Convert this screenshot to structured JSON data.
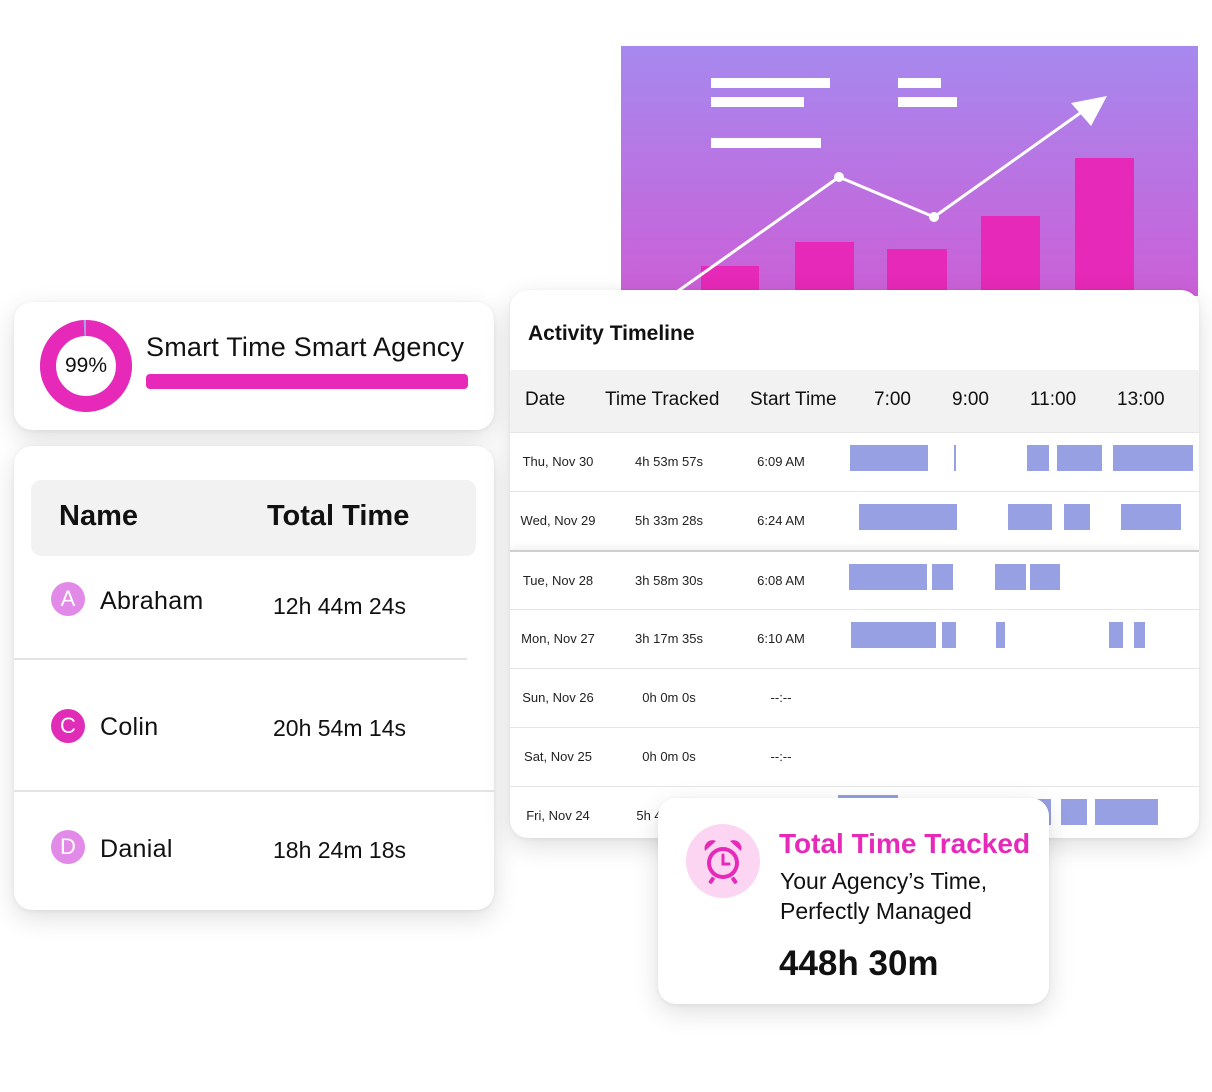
{
  "colors": {
    "accent": "#e629b8",
    "timeline_bar": "#97a0e3",
    "hero_top": "#a689ee",
    "hero_bottom": "#cb5fd7",
    "avatar_light": "#e28ae8",
    "avatar_dark": "#e02cb6"
  },
  "agency": {
    "percent_label": "99%",
    "completion": 0.99,
    "title": "Smart Time Smart Agency"
  },
  "people": {
    "header": {
      "name": "Name",
      "total": "Total Time"
    },
    "rows": [
      {
        "initial": "A",
        "name": "Abraham",
        "total": "12h 44m 24s",
        "avatar_color": "#e28ae8"
      },
      {
        "initial": "C",
        "name": "Colin",
        "total": "20h 54m 14s",
        "avatar_color": "#e02cb6"
      },
      {
        "initial": "D",
        "name": "Danial",
        "total": "18h 24m 18s",
        "avatar_color": "#e28ae8"
      }
    ]
  },
  "timeline": {
    "title": "Activity Timeline",
    "columns": {
      "date": "Date",
      "tracked": "Time Tracked",
      "start": "Start Time"
    },
    "hours": [
      "7:00",
      "9:00",
      "11:00",
      "13:00"
    ],
    "rows": [
      {
        "date": "Thu, Nov 30",
        "tracked": "4h 53m 57s",
        "start": "6:09 AM"
      },
      {
        "date": "Wed, Nov 29",
        "tracked": "5h 33m 28s",
        "start": "6:24 AM"
      },
      {
        "date": "Tue, Nov 28",
        "tracked": "3h 58m 30s",
        "start": "6:08 AM"
      },
      {
        "date": "Mon, Nov 27",
        "tracked": "3h 17m 35s",
        "start": "6:10 AM"
      },
      {
        "date": "Sun, Nov 26",
        "tracked": "0h 0m 0s",
        "start": "--:--"
      },
      {
        "date": "Sat, Nov 25",
        "tracked": "0h 0m 0s",
        "start": "--:--"
      },
      {
        "date": "Fri, Nov 24",
        "tracked": "5h 4",
        "start": ""
      }
    ]
  },
  "total": {
    "heading": "Total Time Tracked",
    "line1": "Your Agency’s Time,",
    "line2": "Perfectly Managed",
    "value": "448h 30m",
    "icon": "alarm-clock-icon"
  }
}
